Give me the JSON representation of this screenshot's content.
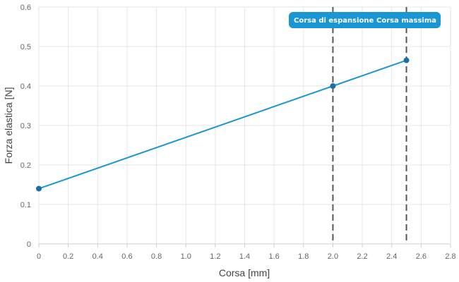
{
  "chart_data": {
    "type": "line",
    "xlabel": "Corsa [mm]",
    "ylabel": "Forza elastica [N]",
    "xlim": [
      0,
      2.8
    ],
    "ylim": [
      0,
      0.6
    ],
    "x_ticks": [
      "0",
      "0.2",
      "0.4",
      "0.6",
      "0.8",
      "1.0",
      "1.2",
      "1.4",
      "1.6",
      "1.8",
      "2.0",
      "2.2",
      "2.4",
      "2.6",
      "2.8"
    ],
    "y_ticks": [
      "0",
      "0.1",
      "0.2",
      "0.3",
      "0.4",
      "0.5",
      "0.6"
    ],
    "grid": true,
    "series": [
      {
        "x": [
          0,
          2.0,
          2.5
        ],
        "y": [
          0.14,
          0.4,
          0.465
        ],
        "color": "#1a96d4",
        "marker_color": "#1a6fa8"
      }
    ],
    "annotations": [
      {
        "x": 2.0,
        "label": "Corsa di espansione",
        "style": "dashed-vertical",
        "badge_color": "#1a96d4"
      },
      {
        "x": 2.5,
        "label": "Corsa massima",
        "style": "dashed-vertical",
        "badge_color": "#1a96d4"
      }
    ]
  }
}
